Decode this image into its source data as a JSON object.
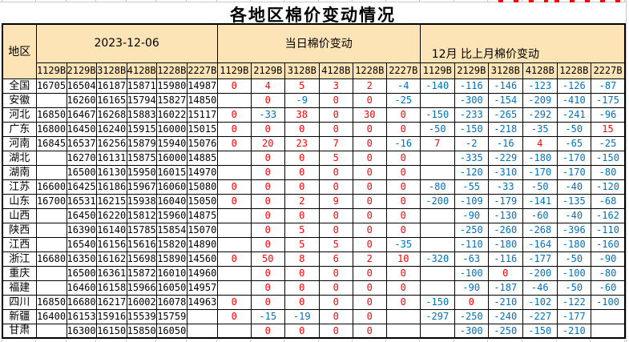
{
  "title": "各地区棉价变动情况",
  "colors": {
    "header_bg": "#fce4b6",
    "positive_value": "#ff0000",
    "negative_value": "#0070c0",
    "table_border": "#000000",
    "excel_gridline": "#c9c9c9"
  },
  "table": {
    "region_header": "地区",
    "column_labels": [
      "1129B",
      "2129B",
      "3128B",
      "4128B",
      "1228B",
      "2227B"
    ],
    "sections": [
      {
        "title": "2023-12-06",
        "key": "prices",
        "value_style": "plain"
      },
      {
        "title": "当日棉价变动",
        "key": "daily_change",
        "value_style": "signed"
      },
      {
        "title": "12月 比上月棉价变动",
        "key": "monthly_change",
        "value_style": "signed"
      }
    ],
    "rows": [
      {
        "region": "全国",
        "prices": [
          16705,
          16504,
          16187,
          15871,
          15980,
          14987
        ],
        "daily_change": [
          0,
          4,
          5,
          3,
          2,
          -4
        ],
        "monthly_change": [
          -140,
          -116,
          -146,
          -123,
          -126,
          -87
        ]
      },
      {
        "region": "安徽",
        "prices": [
          null,
          16260,
          16165,
          15794,
          15827,
          14850
        ],
        "daily_change": [
          null,
          0,
          -9,
          0,
          0,
          -25
        ],
        "monthly_change": [
          null,
          -300,
          -154,
          -209,
          -410,
          -175
        ]
      },
      {
        "region": "河北",
        "prices": [
          16850,
          16467,
          16268,
          15883,
          16022,
          15117
        ],
        "daily_change": [
          0,
          -33,
          38,
          0,
          30,
          0
        ],
        "monthly_change": [
          -150,
          -233,
          -265,
          -292,
          -241,
          -96
        ]
      },
      {
        "region": "广东",
        "prices": [
          16800,
          16450,
          16240,
          15915,
          16000,
          15015
        ],
        "daily_change": [
          0,
          0,
          0,
          0,
          0,
          0
        ],
        "monthly_change": [
          -50,
          -150,
          -218,
          -35,
          -50,
          15
        ]
      },
      {
        "region": "河南",
        "prices": [
          16845,
          16537,
          16256,
          15879,
          15940,
          15076
        ],
        "daily_change": [
          0,
          20,
          23,
          7,
          0,
          -16
        ],
        "monthly_change": [
          7,
          -2,
          -16,
          4,
          -65,
          -25
        ]
      },
      {
        "region": "湖北",
        "prices": [
          null,
          16270,
          16131,
          15875,
          16000,
          14885
        ],
        "daily_change": [
          null,
          0,
          0,
          5,
          0,
          0
        ],
        "monthly_change": [
          null,
          -335,
          -229,
          -180,
          -170,
          -150
        ]
      },
      {
        "region": "湖南",
        "prices": [
          null,
          16500,
          16130,
          15950,
          16015,
          14970
        ],
        "daily_change": [
          null,
          0,
          0,
          0,
          0,
          0
        ],
        "monthly_change": [
          null,
          -120,
          -310,
          -170,
          -170,
          -80
        ]
      },
      {
        "region": "江苏",
        "prices": [
          16600,
          16425,
          16186,
          15967,
          16060,
          15080
        ],
        "daily_change": [
          0,
          0,
          0,
          0,
          0,
          0
        ],
        "monthly_change": [
          -80,
          -55,
          -33,
          -50,
          -40,
          -120
        ]
      },
      {
        "region": "山东",
        "prices": [
          16700,
          16531,
          16215,
          15938,
          16040,
          15050
        ],
        "daily_change": [
          0,
          0,
          2,
          9,
          0,
          0
        ],
        "monthly_change": [
          -200,
          -109,
          -179,
          -141,
          -135,
          -68
        ]
      },
      {
        "region": "山西",
        "prices": [
          null,
          16450,
          16220,
          15812,
          15960,
          14875
        ],
        "daily_change": [
          null,
          0,
          0,
          0,
          0,
          0
        ],
        "monthly_change": [
          null,
          -90,
          -130,
          -60,
          -40,
          -162
        ]
      },
      {
        "region": "陕西",
        "prices": [
          null,
          16390,
          16140,
          15785,
          15854,
          15070
        ],
        "daily_change": [
          null,
          0,
          5,
          0,
          0,
          0
        ],
        "monthly_change": [
          null,
          -250,
          -260,
          -268,
          -396,
          -110
        ]
      },
      {
        "region": "江西",
        "prices": [
          null,
          16540,
          16156,
          15616,
          15820,
          14890
        ],
        "daily_change": [
          null,
          0,
          5,
          5,
          0,
          -35
        ],
        "monthly_change": [
          null,
          -110,
          -180,
          -164,
          -180,
          -160
        ]
      },
      {
        "region": "浙江",
        "prices": [
          16680,
          16350,
          16162,
          15698,
          15890,
          14560
        ],
        "daily_change": [
          0,
          50,
          8,
          6,
          2,
          10
        ],
        "monthly_change": [
          -320,
          -63,
          -116,
          -177,
          -50,
          -90
        ]
      },
      {
        "region": "重庆",
        "prices": [
          null,
          16500,
          16361,
          15872,
          16010,
          14960
        ],
        "daily_change": [
          null,
          0,
          0,
          0,
          0,
          0
        ],
        "monthly_change": [
          null,
          -100,
          0,
          -200,
          -100,
          -80
        ]
      },
      {
        "region": "福建",
        "prices": [
          null,
          16460,
          16158,
          15966,
          16050,
          14957
        ],
        "daily_change": [
          null,
          0,
          0,
          0,
          0,
          0
        ],
        "monthly_change": [
          null,
          -90,
          -187,
          -46,
          -50,
          -60
        ]
      },
      {
        "region": "四川",
        "prices": [
          16850,
          16680,
          16217,
          16002,
          16078,
          14963
        ],
        "daily_change": [
          0,
          0,
          0,
          0,
          0,
          0
        ],
        "monthly_change": [
          -150,
          0,
          -210,
          -102,
          -122,
          -100
        ]
      },
      {
        "region": "新疆",
        "prices": [
          16400,
          16153,
          15916,
          15539,
          15759,
          null
        ],
        "daily_change": [
          0,
          -15,
          -19,
          0,
          0,
          null
        ],
        "monthly_change": [
          -297,
          -250,
          -240,
          -227,
          -177,
          null
        ]
      },
      {
        "region": "甘肃",
        "prices": [
          null,
          16300,
          16150,
          15850,
          16050,
          null
        ],
        "daily_change": [
          null,
          0,
          0,
          0,
          0,
          null
        ],
        "monthly_change": [
          null,
          -300,
          -250,
          -150,
          -210,
          null
        ]
      }
    ]
  }
}
